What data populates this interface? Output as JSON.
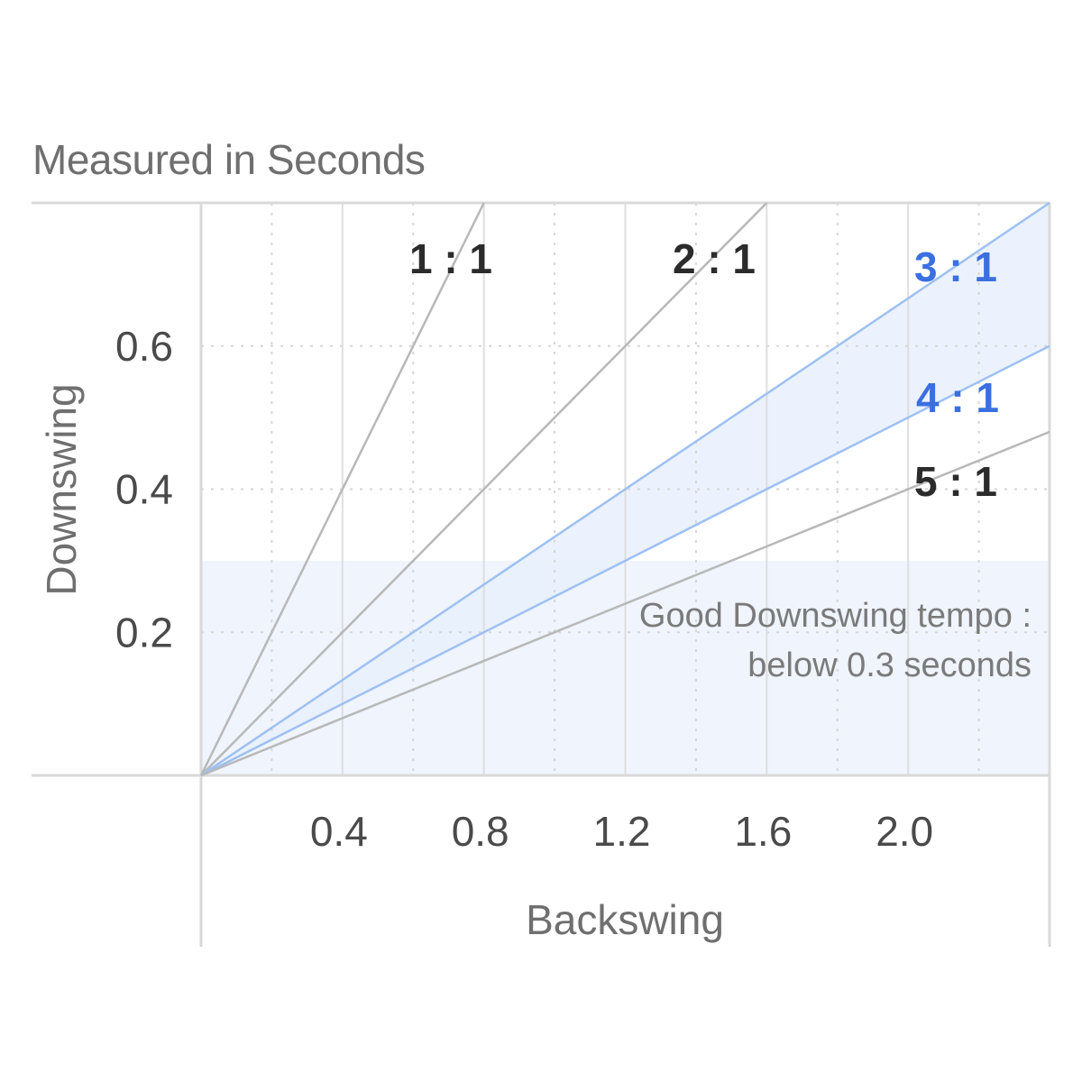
{
  "subtitle": "Measured in Seconds",
  "chart_data": {
    "type": "line",
    "subtitle": "Measured in Seconds",
    "xlabel": "Backswing",
    "ylabel": "Downswing",
    "xlim": [
      0,
      2.4
    ],
    "ylim": [
      0,
      0.8
    ],
    "x_ticks": [
      0.4,
      0.8,
      1.2,
      1.6,
      2.0
    ],
    "x_tick_labels": [
      "0.4",
      "0.8",
      "1.2",
      "1.6",
      "2.0"
    ],
    "y_ticks": [
      0.2,
      0.4,
      0.6
    ],
    "y_tick_labels": [
      "0.2",
      "0.4",
      "0.6"
    ],
    "grid": true,
    "series": [
      {
        "name": "1 : 1",
        "ratio": 1,
        "color": "#b8b8b8",
        "label_color": "#2b2b2b"
      },
      {
        "name": "2 : 1",
        "ratio": 2,
        "color": "#b8b8b8",
        "label_color": "#2b2b2b"
      },
      {
        "name": "3 : 1",
        "ratio": 3,
        "color": "#9ec0f2",
        "label_color": "#3b6fe0"
      },
      {
        "name": "4 : 1",
        "ratio": 4,
        "color": "#9ec0f2",
        "label_color": "#3b6fe0"
      },
      {
        "name": "5 : 1",
        "ratio": 5,
        "color": "#b8b8b8",
        "label_color": "#2b2b2b"
      }
    ],
    "highlight_band": {
      "between_ratios": [
        3,
        4
      ],
      "color": "#e8f0fd"
    },
    "threshold_region": {
      "y_max": 0.3,
      "color": "#eff4fd"
    },
    "annotation": [
      "Good Downswing tempo :",
      "below 0.3 seconds"
    ]
  }
}
